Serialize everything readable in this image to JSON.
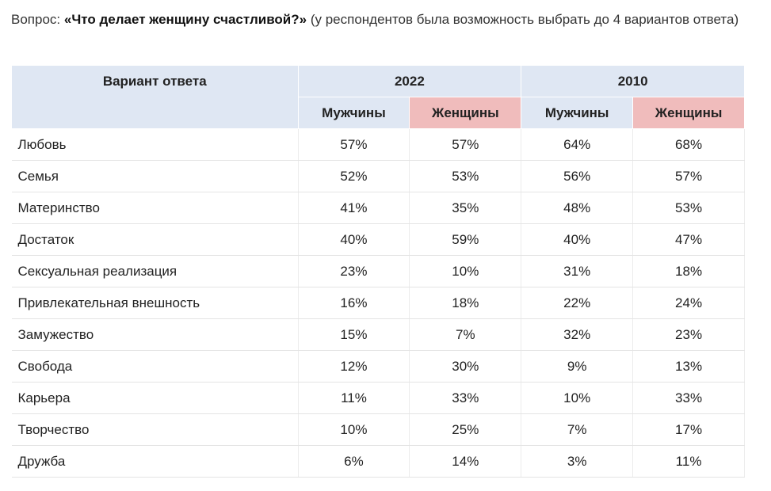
{
  "intro": {
    "prefix": "Вопрос:",
    "question": "«Что делает женщину счастливой?»",
    "note": "(у респондентов была возможность выбрать до 4 вариантов ответа)"
  },
  "table": {
    "header": {
      "option": "Вариант ответа",
      "years": [
        "2022",
        "2010"
      ],
      "groups": [
        "Мужчины",
        "Женщины",
        "Мужчины",
        "Женщины"
      ]
    },
    "rows": [
      [
        "Любовь",
        "57%",
        "57%",
        "64%",
        "68%"
      ],
      [
        "Семья",
        "52%",
        "53%",
        "56%",
        "57%"
      ],
      [
        "Материнство",
        "41%",
        "35%",
        "48%",
        "53%"
      ],
      [
        "Достаток",
        "40%",
        "59%",
        "40%",
        "47%"
      ],
      [
        "Сексуальная реализация",
        "23%",
        "10%",
        "31%",
        "18%"
      ],
      [
        "Привлекательная внешность",
        "16%",
        "18%",
        "22%",
        "24%"
      ],
      [
        "Замужество",
        "15%",
        "7%",
        "32%",
        "23%"
      ],
      [
        "Свобода",
        "12%",
        "30%",
        "9%",
        "13%"
      ],
      [
        "Карьера",
        "11%",
        "33%",
        "10%",
        "33%"
      ],
      [
        "Творчество",
        "10%",
        "25%",
        "7%",
        "17%"
      ],
      [
        "Дружба",
        "6%",
        "14%",
        "3%",
        "11%"
      ]
    ]
  }
}
